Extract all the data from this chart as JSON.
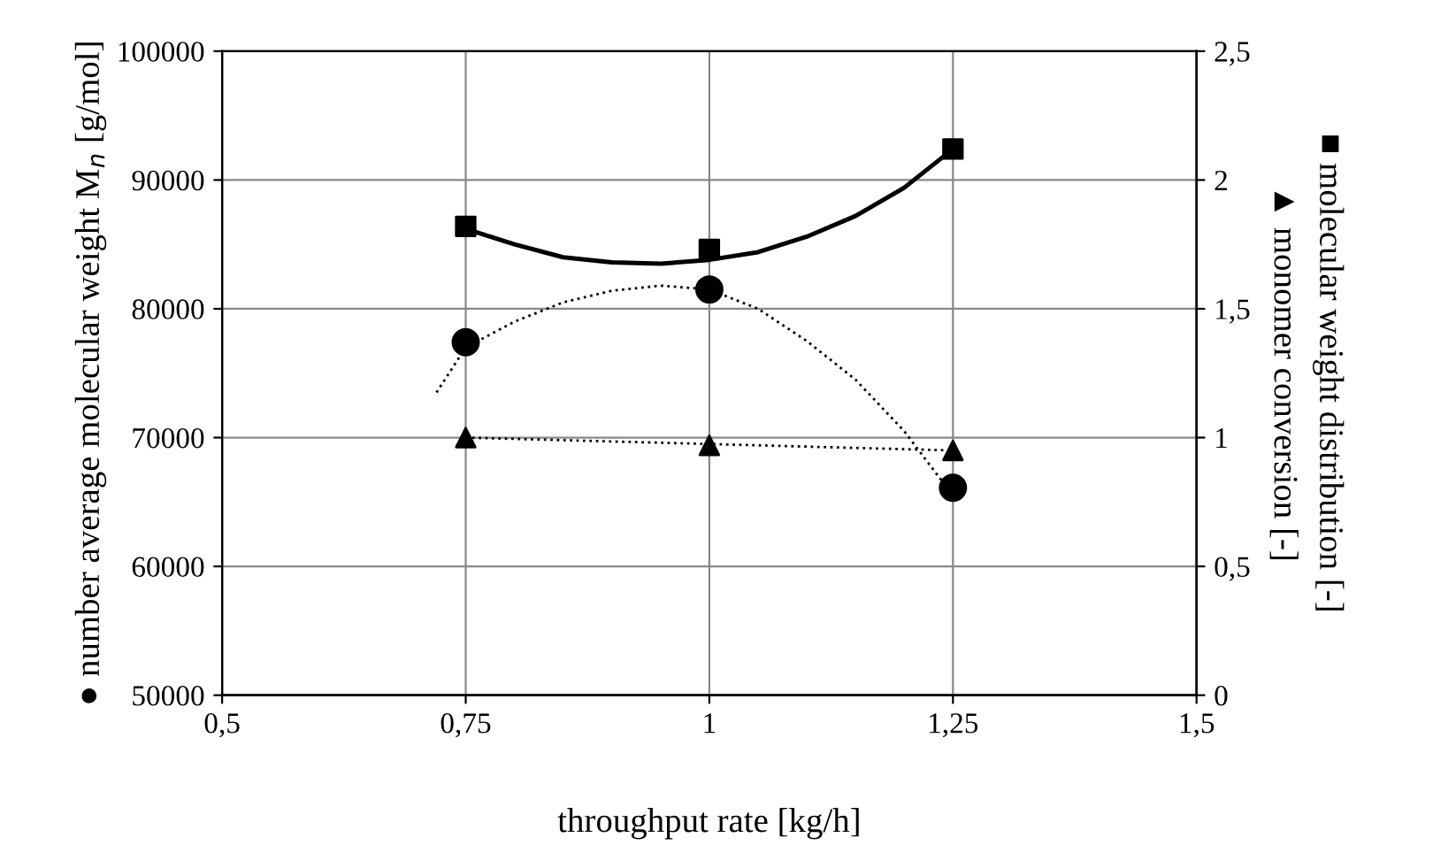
{
  "chart_data": {
    "type": "scatter",
    "xlabel": "throughput rate [kg/h]",
    "ylabel": "● number average molecular weight M$_{n}$ [g/mol]",
    "y2label": "■ molecular weight distribution [-]\n▲ monomer conversion [-]",
    "xlim": [
      0.5,
      1.5
    ],
    "xticks": [
      {
        "value": 0.5,
        "label": "0,5"
      },
      {
        "value": 0.75,
        "label": "0,75"
      },
      1,
      {
        "value": 1.25,
        "label": "1,25"
      },
      {
        "value": 1.5,
        "label": "1,5"
      }
    ],
    "ylim": [
      50000,
      100000
    ],
    "yticks": [
      50000,
      60000,
      70000,
      80000,
      90000,
      100000
    ],
    "y2lim": [
      0,
      2.5
    ],
    "y2ticks": [
      0,
      {
        "value": 0.5,
        "label": "0,5"
      },
      1,
      {
        "value": 1.5,
        "label": "1,5"
      },
      2,
      {
        "value": 2.5,
        "label": "2,5"
      }
    ],
    "grid": true,
    "legend": false,
    "series": [
      {
        "marker": "circle",
        "color": "#000000",
        "x": [
          0.75,
          1,
          1.25
        ],
        "values": [
          77400,
          81500,
          66100
        ]
      },
      {
        "marker": "square",
        "color": "#000000",
        "axis": "y2",
        "x": [
          0.75,
          1,
          1.25
        ],
        "values": [
          1.82,
          1.73,
          2.12
        ]
      },
      {
        "marker": "triangle",
        "color": "#000000",
        "axis": "y2",
        "x": [
          0.75,
          1,
          1.25
        ],
        "values": [
          1.0,
          0.97,
          0.95
        ]
      },
      {
        "type": "line",
        "marker": "none",
        "line_style": "dotted",
        "color": "#000000",
        "x": [
          0.72,
          0.75,
          0.8,
          0.85,
          0.9,
          0.95,
          1.0,
          1.05,
          1.1,
          1.15,
          1.2,
          1.25
        ],
        "values": [
          73500,
          77000,
          79000,
          80500,
          81400,
          81800,
          81500,
          80000,
          77500,
          74500,
          70500,
          65500
        ]
      },
      {
        "type": "line",
        "marker": "none",
        "line_style": "solid",
        "color": "#000000",
        "axis": "y2",
        "x": [
          0.75,
          0.8,
          0.85,
          0.9,
          0.95,
          1.0,
          1.05,
          1.1,
          1.15,
          1.2,
          1.25
        ],
        "values": [
          1.81,
          1.75,
          1.7,
          1.68,
          1.675,
          1.69,
          1.72,
          1.78,
          1.86,
          1.97,
          2.12
        ]
      },
      {
        "type": "line",
        "marker": "none",
        "line_style": "dotted",
        "color": "#000000",
        "axis": "y2",
        "x": [
          0.75,
          1.25
        ],
        "values": [
          1.0,
          0.95
        ]
      }
    ]
  }
}
